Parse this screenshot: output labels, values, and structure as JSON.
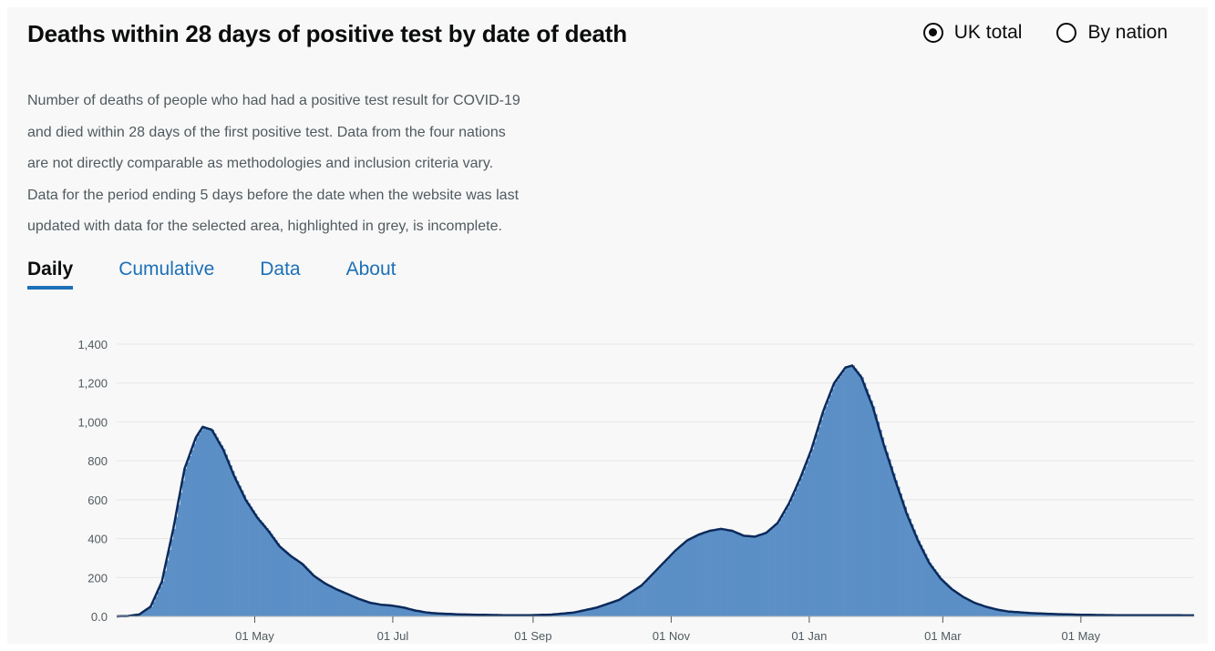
{
  "header": {
    "title": "Deaths within 28 days of positive test by date of death",
    "radio_uk": "UK total",
    "radio_nation": "By nation",
    "selected": "uk"
  },
  "description": [
    "Number of deaths of people who had had a positive test result for COVID-19",
    "and died within 28 days of the first positive test. Data from the four nations",
    "are not directly comparable as methodologies and inclusion criteria vary.",
    "Data for the period ending 5 days before the date when the website was last",
    "updated with data for the selected area, highlighted in grey, is incomplete."
  ],
  "tabs": [
    {
      "label": "Daily",
      "active": true
    },
    {
      "label": "Cumulative",
      "active": false
    },
    {
      "label": "Data",
      "active": false
    },
    {
      "label": "About",
      "active": false
    }
  ],
  "chart_data": {
    "type": "bar",
    "title": "",
    "xlabel": "",
    "ylabel": "",
    "ylim": [
      0,
      1400
    ],
    "y_ticks": [
      {
        "value": 0,
        "label": "0.0"
      },
      {
        "value": 200,
        "label": "200"
      },
      {
        "value": 400,
        "label": "400"
      },
      {
        "value": 600,
        "label": "600"
      },
      {
        "value": 800,
        "label": "800"
      },
      {
        "value": 1000,
        "label": "1,000"
      },
      {
        "value": 1200,
        "label": "1,200"
      },
      {
        "value": 1400,
        "label": "1,400"
      }
    ],
    "x_range": [
      "2020-03-01",
      "2021-06-20"
    ],
    "x_ticks": [
      {
        "date": "2020-05-01",
        "label": "01 May"
      },
      {
        "date": "2020-07-01",
        "label": "01 Jul"
      },
      {
        "date": "2020-09-01",
        "label": "01 Sep"
      },
      {
        "date": "2020-11-01",
        "label": "01 Nov"
      },
      {
        "date": "2021-01-01",
        "label": "01 Jan"
      },
      {
        "date": "2021-03-01",
        "label": "01 Mar"
      },
      {
        "date": "2021-05-01",
        "label": "01 May"
      }
    ],
    "grid": true,
    "series": [
      {
        "kind": "bars",
        "color": "#5b8fc6",
        "values_every_5_days": [
          {
            "date": "2020-03-01",
            "value": 0
          },
          {
            "date": "2020-03-06",
            "value": 2
          },
          {
            "date": "2020-03-11",
            "value": 10
          },
          {
            "date": "2020-03-16",
            "value": 50
          },
          {
            "date": "2020-03-21",
            "value": 180
          },
          {
            "date": "2020-03-26",
            "value": 450
          },
          {
            "date": "2020-03-31",
            "value": 760
          },
          {
            "date": "2020-04-05",
            "value": 920
          },
          {
            "date": "2020-04-08",
            "value": 975
          },
          {
            "date": "2020-04-12",
            "value": 960
          },
          {
            "date": "2020-04-17",
            "value": 860
          },
          {
            "date": "2020-04-22",
            "value": 720
          },
          {
            "date": "2020-04-27",
            "value": 600
          },
          {
            "date": "2020-05-02",
            "value": 510
          },
          {
            "date": "2020-05-07",
            "value": 440
          },
          {
            "date": "2020-05-12",
            "value": 360
          },
          {
            "date": "2020-05-17",
            "value": 310
          },
          {
            "date": "2020-05-22",
            "value": 270
          },
          {
            "date": "2020-05-27",
            "value": 210
          },
          {
            "date": "2020-06-01",
            "value": 170
          },
          {
            "date": "2020-06-06",
            "value": 140
          },
          {
            "date": "2020-06-11",
            "value": 115
          },
          {
            "date": "2020-06-16",
            "value": 90
          },
          {
            "date": "2020-06-21",
            "value": 70
          },
          {
            "date": "2020-06-26",
            "value": 60
          },
          {
            "date": "2020-07-01",
            "value": 55
          },
          {
            "date": "2020-07-06",
            "value": 45
          },
          {
            "date": "2020-07-11",
            "value": 30
          },
          {
            "date": "2020-07-16",
            "value": 20
          },
          {
            "date": "2020-07-21",
            "value": 15
          },
          {
            "date": "2020-07-31",
            "value": 10
          },
          {
            "date": "2020-08-10",
            "value": 8
          },
          {
            "date": "2020-08-20",
            "value": 6
          },
          {
            "date": "2020-08-30",
            "value": 6
          },
          {
            "date": "2020-09-09",
            "value": 9
          },
          {
            "date": "2020-09-19",
            "value": 20
          },
          {
            "date": "2020-09-29",
            "value": 45
          },
          {
            "date": "2020-10-09",
            "value": 85
          },
          {
            "date": "2020-10-19",
            "value": 160
          },
          {
            "date": "2020-10-29",
            "value": 280
          },
          {
            "date": "2020-11-03",
            "value": 340
          },
          {
            "date": "2020-11-08",
            "value": 390
          },
          {
            "date": "2020-11-13",
            "value": 420
          },
          {
            "date": "2020-11-18",
            "value": 440
          },
          {
            "date": "2020-11-23",
            "value": 450
          },
          {
            "date": "2020-11-28",
            "value": 440
          },
          {
            "date": "2020-12-03",
            "value": 415
          },
          {
            "date": "2020-12-08",
            "value": 410
          },
          {
            "date": "2020-12-13",
            "value": 430
          },
          {
            "date": "2020-12-18",
            "value": 480
          },
          {
            "date": "2020-12-23",
            "value": 580
          },
          {
            "date": "2020-12-28",
            "value": 710
          },
          {
            "date": "2021-01-02",
            "value": 860
          },
          {
            "date": "2021-01-07",
            "value": 1050
          },
          {
            "date": "2021-01-12",
            "value": 1200
          },
          {
            "date": "2021-01-17",
            "value": 1280
          },
          {
            "date": "2021-01-20",
            "value": 1290
          },
          {
            "date": "2021-01-24",
            "value": 1230
          },
          {
            "date": "2021-01-29",
            "value": 1080
          },
          {
            "date": "2021-02-03",
            "value": 880
          },
          {
            "date": "2021-02-08",
            "value": 700
          },
          {
            "date": "2021-02-13",
            "value": 530
          },
          {
            "date": "2021-02-18",
            "value": 390
          },
          {
            "date": "2021-02-23",
            "value": 275
          },
          {
            "date": "2021-02-28",
            "value": 195
          },
          {
            "date": "2021-03-05",
            "value": 140
          },
          {
            "date": "2021-03-10",
            "value": 100
          },
          {
            "date": "2021-03-15",
            "value": 70
          },
          {
            "date": "2021-03-20",
            "value": 50
          },
          {
            "date": "2021-03-25",
            "value": 35
          },
          {
            "date": "2021-03-30",
            "value": 25
          },
          {
            "date": "2021-04-09",
            "value": 17
          },
          {
            "date": "2021-04-19",
            "value": 12
          },
          {
            "date": "2021-04-29",
            "value": 9
          },
          {
            "date": "2021-05-09",
            "value": 7
          },
          {
            "date": "2021-05-19",
            "value": 6
          },
          {
            "date": "2021-05-29",
            "value": 6
          },
          {
            "date": "2021-06-08",
            "value": 6
          },
          {
            "date": "2021-06-18",
            "value": 5
          }
        ]
      },
      {
        "kind": "line",
        "color": "#0b2a5b",
        "follows": "bars"
      }
    ]
  }
}
